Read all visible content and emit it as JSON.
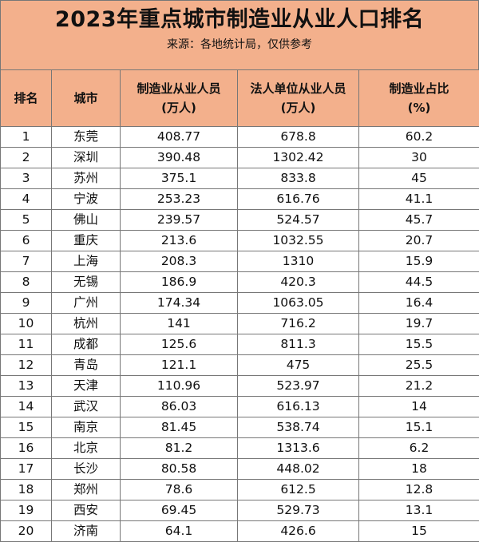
{
  "title": "2023年重点城市制造业从业人口排名",
  "subtitle": "来源：各地统计局，仅供参考",
  "columns": {
    "rank": "排名",
    "city": "城市",
    "mfg_workers_1": "制造业从业人员",
    "mfg_workers_2": "(万人)",
    "legal_workers_1": "法人单位从业人员",
    "legal_workers_2": "(万人)",
    "share_1": "制造业占比",
    "share_2": "(%)"
  },
  "rows": [
    {
      "rank": "1",
      "city": "东莞",
      "mfg": "408.77",
      "legal": "678.8",
      "share": "60.2"
    },
    {
      "rank": "2",
      "city": "深圳",
      "mfg": "390.48",
      "legal": "1302.42",
      "share": "30"
    },
    {
      "rank": "3",
      "city": "苏州",
      "mfg": "375.1",
      "legal": "833.8",
      "share": "45"
    },
    {
      "rank": "4",
      "city": "宁波",
      "mfg": "253.23",
      "legal": "616.76",
      "share": "41.1"
    },
    {
      "rank": "5",
      "city": "佛山",
      "mfg": "239.57",
      "legal": "524.57",
      "share": "45.7"
    },
    {
      "rank": "6",
      "city": "重庆",
      "mfg": "213.6",
      "legal": "1032.55",
      "share": "20.7"
    },
    {
      "rank": "7",
      "city": "上海",
      "mfg": "208.3",
      "legal": "1310",
      "share": "15.9"
    },
    {
      "rank": "8",
      "city": "无锡",
      "mfg": "186.9",
      "legal": "420.3",
      "share": "44.5"
    },
    {
      "rank": "9",
      "city": "广州",
      "mfg": "174.34",
      "legal": "1063.05",
      "share": "16.4"
    },
    {
      "rank": "10",
      "city": "杭州",
      "mfg": "141",
      "legal": "716.2",
      "share": "19.7"
    },
    {
      "rank": "11",
      "city": "成都",
      "mfg": "125.6",
      "legal": "811.3",
      "share": "15.5"
    },
    {
      "rank": "12",
      "city": "青岛",
      "mfg": "121.1",
      "legal": "475",
      "share": "25.5"
    },
    {
      "rank": "13",
      "city": "天津",
      "mfg": "110.96",
      "legal": "523.97",
      "share": "21.2"
    },
    {
      "rank": "14",
      "city": "武汉",
      "mfg": "86.03",
      "legal": "616.13",
      "share": "14"
    },
    {
      "rank": "15",
      "city": "南京",
      "mfg": "81.45",
      "legal": "538.74",
      "share": "15.1"
    },
    {
      "rank": "16",
      "city": "北京",
      "mfg": "81.2",
      "legal": "1313.6",
      "share": "6.2"
    },
    {
      "rank": "17",
      "city": "长沙",
      "mfg": "80.58",
      "legal": "448.02",
      "share": "18"
    },
    {
      "rank": "18",
      "city": "郑州",
      "mfg": "78.6",
      "legal": "612.5",
      "share": "12.8"
    },
    {
      "rank": "19",
      "city": "西安",
      "mfg": "69.45",
      "legal": "529.73",
      "share": "13.1"
    },
    {
      "rank": "20",
      "city": "济南",
      "mfg": "64.1",
      "legal": "426.6",
      "share": "15"
    }
  ],
  "colors": {
    "header_bg": "#f3b08c",
    "border": "#777777"
  }
}
